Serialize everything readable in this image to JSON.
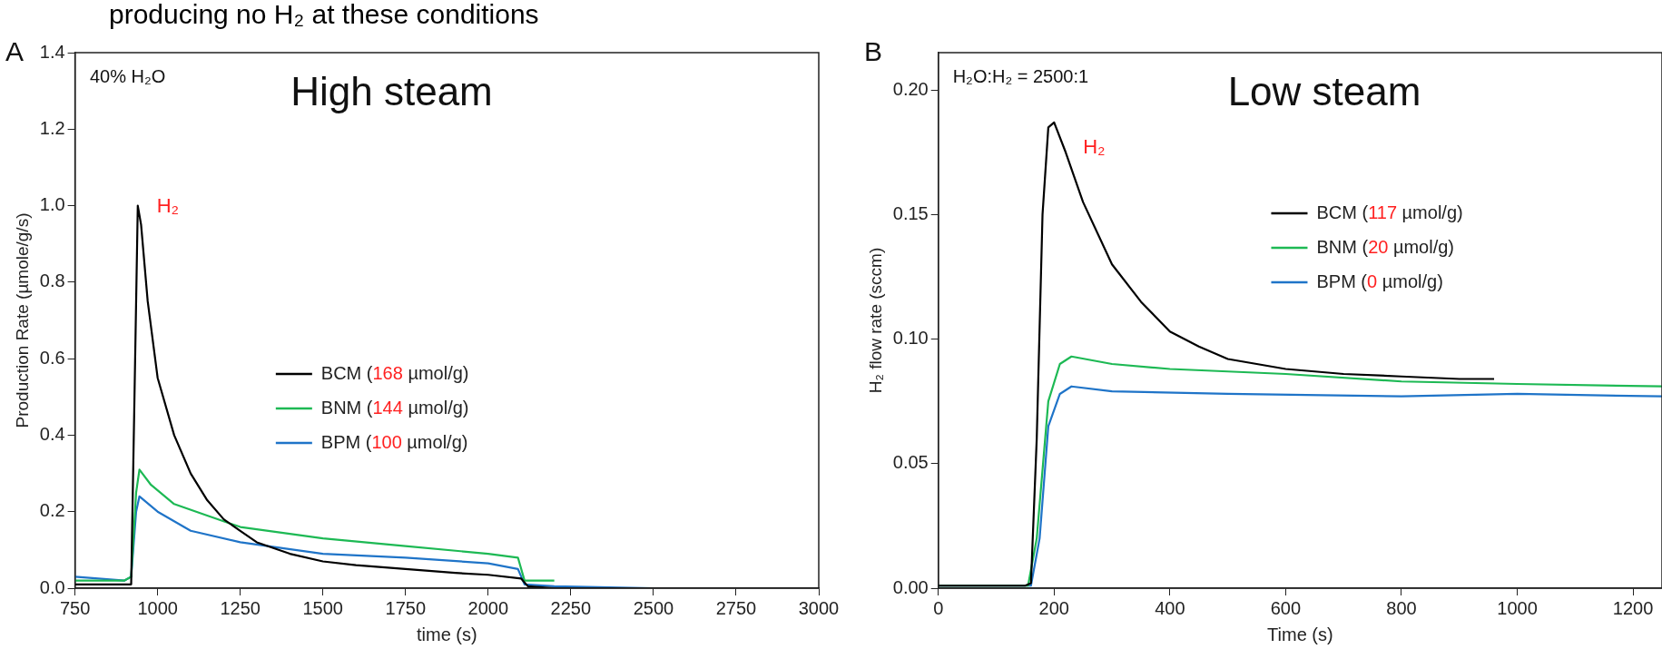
{
  "chart_data": [
    {
      "type": "line",
      "title": "producing no H₂ at these conditions",
      "xlabel": "time (s)",
      "ylabel": "Production Rate (µmole/g/s)",
      "xlim": [
        750,
        3000
      ],
      "xticks": [
        750,
        1000,
        1250,
        1500,
        1750,
        2000,
        2250,
        2500,
        2750,
        3000
      ],
      "ylim": [
        0,
        1.4
      ],
      "yticks": [
        {
          "value": 0,
          "label": "0.0"
        },
        {
          "value": 0.2,
          "label": "0.2"
        },
        {
          "value": 0.4,
          "label": "0.4"
        },
        {
          "value": 0.6,
          "label": "0.6"
        },
        {
          "value": 0.8,
          "label": "0.8"
        },
        {
          "value": 1,
          "label": "1.0"
        },
        {
          "value": 1.2,
          "label": "1.2"
        },
        {
          "value": 1.4,
          "label": "1.4"
        }
      ],
      "grid": false,
      "legend": "center",
      "marker": "none",
      "line_style": "solid",
      "annotations": [
        "A",
        "40% H₂O",
        "High steam",
        "H₂"
      ],
      "series": [
        {
          "name": "BCM (168 µmol/g)",
          "color": "#000000",
          "x": [
            750,
            900,
            920,
            930,
            940,
            950,
            970,
            1000,
            1050,
            1100,
            1150,
            1200,
            1250,
            1300,
            1400,
            1500,
            1600,
            1750,
            1900,
            2000,
            2100,
            2120,
            2200,
            3000
          ],
          "values": [
            0.01,
            0.01,
            0.01,
            0.5,
            1.0,
            0.95,
            0.75,
            0.55,
            0.4,
            0.3,
            0.23,
            0.18,
            0.15,
            0.12,
            0.09,
            0.07,
            0.06,
            0.05,
            0.04,
            0.035,
            0.025,
            0.005,
            0,
            0
          ]
        },
        {
          "name": "BNM (144 µmol/g)",
          "color": "#1db954",
          "x": [
            750,
            900,
            920,
            935,
            945,
            980,
            1050,
            1150,
            1250,
            1500,
            1750,
            2000,
            2090,
            2110,
            2200
          ],
          "values": [
            0.02,
            0.02,
            0.03,
            0.25,
            0.31,
            0.27,
            0.22,
            0.19,
            0.16,
            0.13,
            0.11,
            0.09,
            0.08,
            0.02,
            0.02
          ]
        },
        {
          "name": "BPM (100 µmol/g)",
          "color": "#1f74c8",
          "x": [
            750,
            900,
            920,
            935,
            945,
            1000,
            1100,
            1250,
            1500,
            1750,
            2000,
            2090,
            2110,
            2200,
            2500,
            3000
          ],
          "values": [
            0.03,
            0.02,
            0.03,
            0.2,
            0.24,
            0.2,
            0.15,
            0.12,
            0.09,
            0.08,
            0.065,
            0.05,
            0.01,
            0.005,
            0,
            0
          ]
        }
      ]
    },
    {
      "type": "line",
      "xlabel": "Time (s)",
      "ylabel": "H₂ flow rate (sccm)",
      "xlim": [
        0,
        1250
      ],
      "xticks": [
        0,
        200,
        400,
        600,
        800,
        1000,
        1200
      ],
      "ylim": [
        0,
        0.215
      ],
      "yticks": [
        {
          "value": 0,
          "label": "0.00"
        },
        {
          "value": 0.05,
          "label": "0.05"
        },
        {
          "value": 0.1,
          "label": "0.10"
        },
        {
          "value": 0.15,
          "label": "0.15"
        },
        {
          "value": 0.2,
          "label": "0.20"
        }
      ],
      "grid": false,
      "legend": "right",
      "marker": "none",
      "line_style": "solid",
      "annotations": [
        "B",
        "H₂O:H₂ = 2500:1",
        "Low steam",
        "H₂"
      ],
      "series": [
        {
          "name": "BCM (117 µmol/g)",
          "color": "#000000",
          "x": [
            0,
            150,
            160,
            170,
            180,
            190,
            200,
            220,
            250,
            300,
            350,
            400,
            450,
            500,
            600,
            700,
            800,
            900,
            960
          ],
          "values": [
            0.001,
            0.001,
            0.002,
            0.06,
            0.15,
            0.185,
            0.187,
            0.175,
            0.155,
            0.13,
            0.115,
            0.103,
            0.097,
            0.092,
            0.088,
            0.086,
            0.085,
            0.084,
            0.084
          ]
        },
        {
          "name": "BNM (20 µmol/g)",
          "color": "#1db954",
          "x": [
            0,
            155,
            170,
            190,
            210,
            230,
            300,
            400,
            600,
            800,
            1000,
            1250
          ],
          "values": [
            0.001,
            0.001,
            0.02,
            0.075,
            0.09,
            0.093,
            0.09,
            0.088,
            0.086,
            0.083,
            0.082,
            0.081
          ]
        },
        {
          "name": "BPM (0 µmol/g)",
          "color": "#1f74c8",
          "x": [
            0,
            160,
            175,
            190,
            210,
            230,
            300,
            500,
            800,
            1000,
            1250
          ],
          "values": [
            0.001,
            0.001,
            0.02,
            0.065,
            0.078,
            0.081,
            0.079,
            0.078,
            0.077,
            0.078,
            0.077
          ]
        }
      ]
    }
  ]
}
